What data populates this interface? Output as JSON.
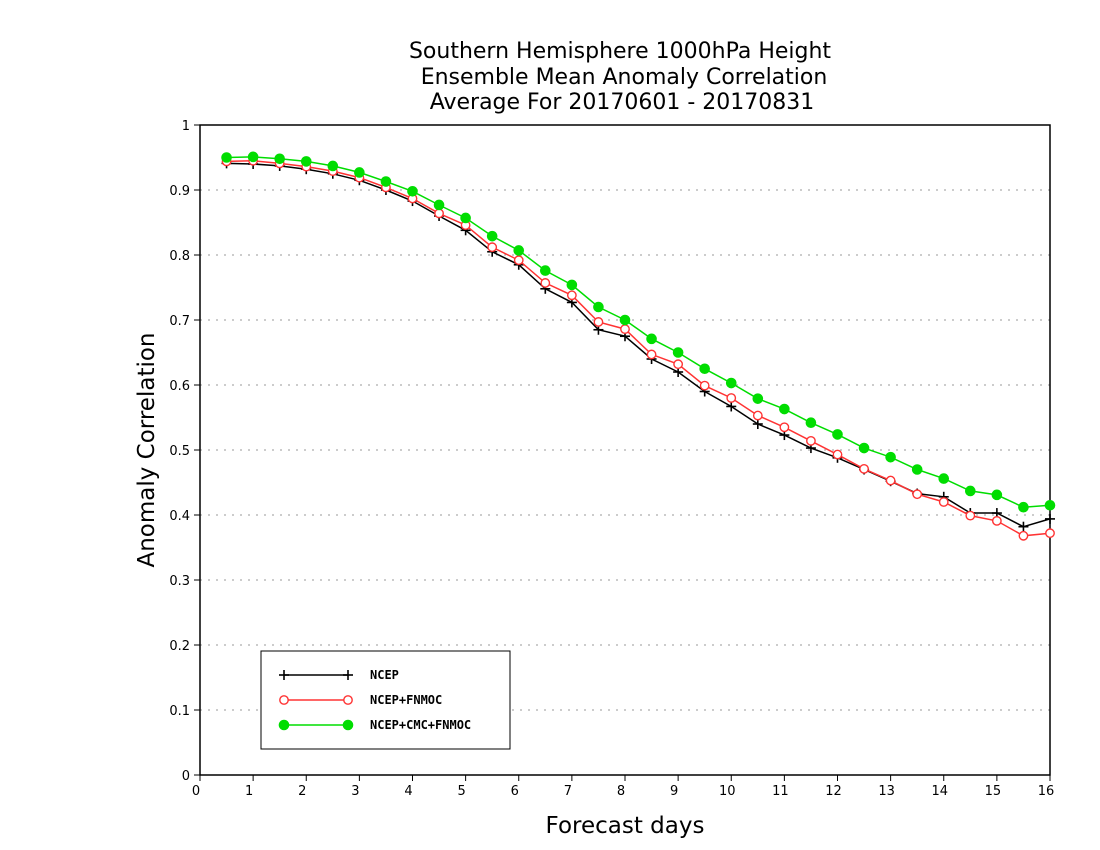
{
  "chart_data": {
    "type": "line",
    "title_lines": [
      "Southern Hemisphere 1000hPa Height",
      "Ensemble Mean Anomaly Correlation",
      "Average For 20170601 - 20170831"
    ],
    "xlabel": "Forecast days",
    "ylabel": "Anomaly Correlation",
    "xlim": [
      0,
      16
    ],
    "ylim": [
      0,
      1
    ],
    "x_ticks": [
      "0",
      "1",
      "2",
      "3",
      "4",
      "5",
      "6",
      "7",
      "8",
      "9",
      "10",
      "11",
      "12",
      "13",
      "14",
      "15",
      "16"
    ],
    "y_ticks": [
      "0",
      "0.1",
      "0.2",
      "0.3",
      "0.4",
      "0.5",
      "0.6",
      "0.7",
      "0.8",
      "0.9",
      "1"
    ],
    "grid": "horizontal-dotted",
    "legend_position": "bottom-left",
    "x": [
      0.5,
      1,
      1.5,
      2,
      2.5,
      3,
      3.5,
      4,
      4.5,
      5,
      5.5,
      6,
      6.5,
      7,
      7.5,
      8,
      8.5,
      9,
      9.5,
      10,
      10.5,
      11,
      11.5,
      12,
      12.5,
      13,
      13.5,
      14,
      14.5,
      15,
      15.5,
      16
    ],
    "series": [
      {
        "name": "NCEP",
        "color": "#000000",
        "marker": "plus",
        "values": [
          0.941,
          0.94,
          0.937,
          0.932,
          0.925,
          0.915,
          0.9,
          0.883,
          0.86,
          0.838,
          0.805,
          0.785,
          0.748,
          0.727,
          0.685,
          0.675,
          0.64,
          0.62,
          0.59,
          0.567,
          0.54,
          0.523,
          0.503,
          0.488,
          0.47,
          0.452,
          0.433,
          0.428,
          0.403,
          0.403,
          0.382,
          0.394
        ]
      },
      {
        "name": "NCEP+FNMOC",
        "color": "#ff3333",
        "marker": "open-circle",
        "values": [
          0.944,
          0.945,
          0.941,
          0.936,
          0.929,
          0.919,
          0.904,
          0.887,
          0.864,
          0.846,
          0.812,
          0.792,
          0.757,
          0.738,
          0.697,
          0.686,
          0.647,
          0.632,
          0.599,
          0.58,
          0.553,
          0.535,
          0.514,
          0.493,
          0.471,
          0.453,
          0.432,
          0.42,
          0.399,
          0.391,
          0.368,
          0.372
        ]
      },
      {
        "name": "NCEP+CMC+FNMOC",
        "color": "#00dd00",
        "marker": "filled-circle",
        "values": [
          0.95,
          0.951,
          0.948,
          0.944,
          0.937,
          0.927,
          0.913,
          0.898,
          0.877,
          0.857,
          0.829,
          0.807,
          0.776,
          0.754,
          0.72,
          0.7,
          0.671,
          0.65,
          0.625,
          0.603,
          0.579,
          0.563,
          0.542,
          0.524,
          0.503,
          0.489,
          0.47,
          0.456,
          0.437,
          0.431,
          0.412,
          0.415
        ]
      }
    ]
  }
}
